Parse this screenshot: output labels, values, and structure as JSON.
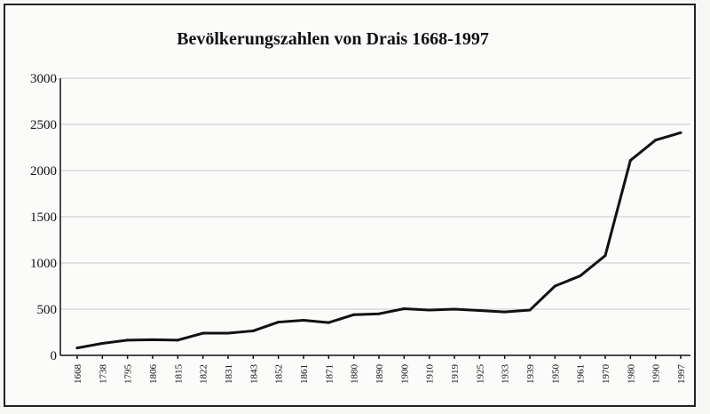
{
  "chart_data": {
    "type": "line",
    "title": "Bevölkerungszahlen von Drais 1668-1997",
    "xlabel": "",
    "ylabel": "",
    "ylim": [
      0,
      3000
    ],
    "yticks": [
      0,
      500,
      1000,
      1500,
      2000,
      2500,
      3000
    ],
    "grid": true,
    "legend": "none",
    "categories": [
      "1668",
      "1738",
      "1795",
      "1806",
      "1815",
      "1822",
      "1831",
      "1843",
      "1852",
      "1861",
      "1871",
      "1880",
      "1890",
      "1900",
      "1910",
      "1919",
      "1925",
      "1933",
      "1939",
      "1950",
      "1961",
      "1970",
      "1980",
      "1990",
      "1997"
    ],
    "series": [
      {
        "values": [
          80,
          130,
          165,
          170,
          165,
          240,
          240,
          265,
          360,
          380,
          355,
          440,
          450,
          505,
          490,
          500,
          485,
          470,
          490,
          750,
          860,
          1080,
          2110,
          2330,
          2410
        ]
      }
    ],
    "colors": {
      "line": "#111111",
      "grid": "#c9c9c9"
    }
  }
}
